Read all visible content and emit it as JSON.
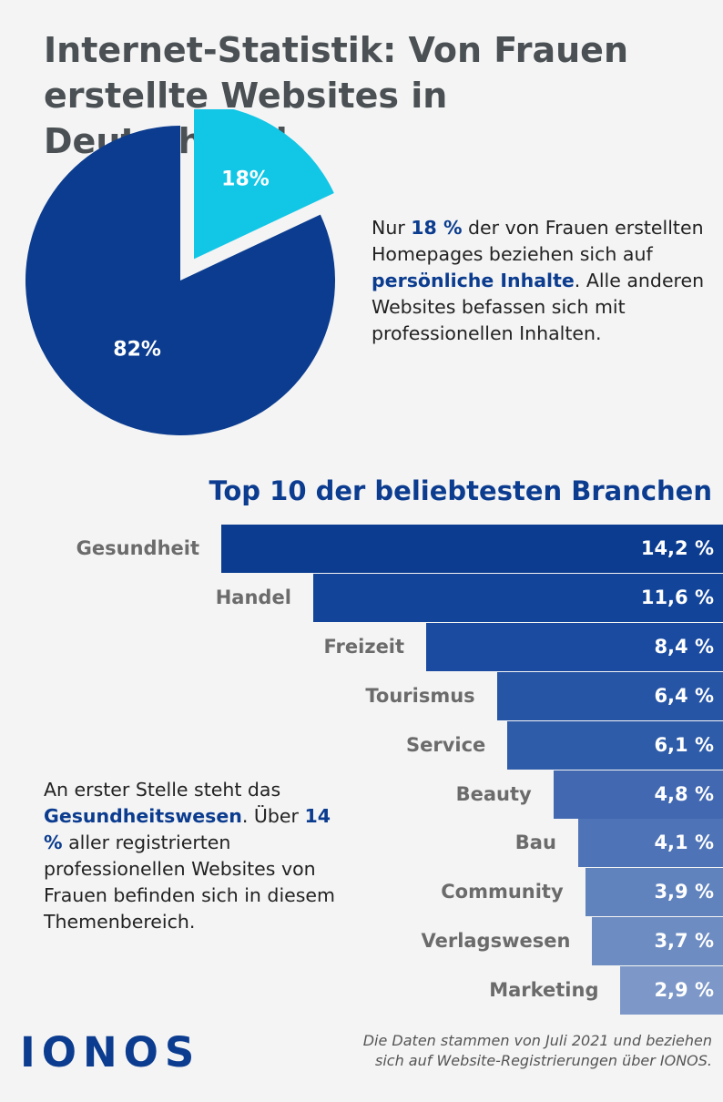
{
  "title_lines": [
    "Internet-Statistik: Von Frauen",
    "erstellte Websites in Deutschland"
  ],
  "colors": {
    "dark_blue": "#0b3c8f",
    "light_blue": "#12c6e6",
    "title_gray": "#4a5053"
  },
  "chart_data": [
    {
      "type": "pie",
      "title": "",
      "slices": [
        {
          "label": "18%",
          "value": 18,
          "color": "#12c6e6",
          "exploded": true
        },
        {
          "label": "82%",
          "value": 82,
          "color": "#0b3c8f",
          "exploded": false
        }
      ]
    },
    {
      "type": "bar",
      "orientation": "horizontal",
      "title": "Top 10 der beliebtesten Branchen",
      "categories": [
        "Gesundheit",
        "Handel",
        "Freizeit",
        "Tourismus",
        "Service",
        "Beauty",
        "Bau",
        "Community",
        "Verlagswesen",
        "Marketing"
      ],
      "values": [
        14.2,
        11.6,
        8.4,
        6.4,
        6.1,
        4.8,
        4.1,
        3.9,
        3.7,
        2.9
      ],
      "value_labels": [
        "14,2 %",
        "11,6 %",
        "8,4 %",
        "6,4 %",
        "6,1 %",
        "4,8 %",
        "4,1 %",
        "3,9 %",
        "3,7 %",
        "2,9 %"
      ],
      "colors": [
        "#0b3c8f",
        "#12449a",
        "#1a4ba0",
        "#2655a6",
        "#2e5ca9",
        "#4168b1",
        "#4e73b6",
        "#6082bd",
        "#6d8cc2",
        "#7d98c8"
      ],
      "xlim": [
        0,
        14.2
      ]
    }
  ],
  "pie_text": {
    "pre": "Nur ",
    "hl1": "18 %",
    "mid": " der von Frauen erstellten Homepages beziehen sich auf ",
    "hl2": "persönliche Inhalte",
    "post": ". Alle anderen Websites befassen sich mit professionellen Inhalten."
  },
  "bar_text": {
    "pre": "An erster Stelle steht das ",
    "hl1": "Gesundheitswesen",
    "mid": ". Über ",
    "hl2": "14 %",
    "post": " aller registrierten professionellen Websites von Frauen befinden sich in diesem Themenbereich."
  },
  "logo": "IONOS",
  "source": "Die Daten stammen von Juli 2021 und beziehen sich auf Website-Registrierungen über IONOS."
}
